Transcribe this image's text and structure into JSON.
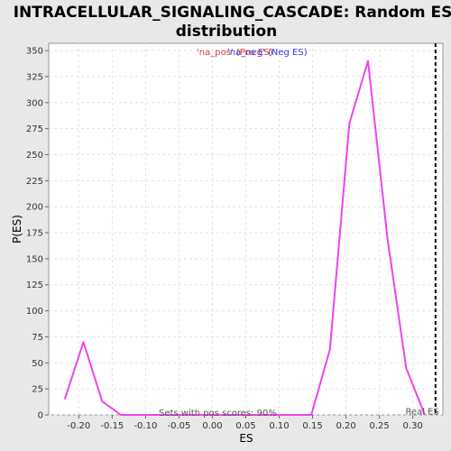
{
  "chart_data": {
    "type": "line",
    "title_line1": "INTRACELLULAR_SIGNALING_CASCADE: Random ES",
    "title_line2": "distribution",
    "xlabel": "ES",
    "ylabel": "P(ES)",
    "xlim": [
      -0.245,
      0.345
    ],
    "ylim": [
      0,
      357
    ],
    "xticks": [
      -0.2,
      -0.15,
      -0.1,
      -0.05,
      0.0,
      0.05,
      0.1,
      0.15,
      0.2,
      0.25,
      0.3
    ],
    "xtick_labels": [
      "-0.20",
      "-0.15",
      "-0.10",
      "-0.05",
      "0.00",
      "0.05",
      "0.10",
      "0.15",
      "0.20",
      "0.25",
      "0.30"
    ],
    "yticks": [
      0,
      25,
      50,
      75,
      100,
      125,
      150,
      175,
      200,
      225,
      250,
      275,
      300,
      325,
      350
    ],
    "ytick_labels": [
      "0",
      "25",
      "50",
      "75",
      "100",
      "125",
      "150",
      "175",
      "200",
      "225",
      "250",
      "275",
      "300",
      "325",
      "350"
    ],
    "grid": true,
    "legend": {
      "placement": "top-center",
      "entries": [
        {
          "label": "'na_pos' (Pos ES)",
          "color": "#e03a3a"
        },
        {
          "label": "'na_neg' (Neg ES)",
          "color": "#3a3ae0"
        }
      ]
    },
    "series": [
      {
        "color": "#ee44ee",
        "x": [
          -0.221,
          -0.193,
          -0.165,
          -0.137,
          -0.109,
          0.148,
          0.176,
          0.205,
          0.233,
          0.262,
          0.29,
          0.318
        ],
        "y": [
          15,
          70,
          13,
          0,
          0,
          0,
          63,
          280,
          340,
          170,
          45,
          0
        ]
      }
    ],
    "reference_line": {
      "x": 0.334,
      "label": "Real ES",
      "color": "#000000"
    },
    "annotation": "Sets with pos scores: 90%"
  }
}
